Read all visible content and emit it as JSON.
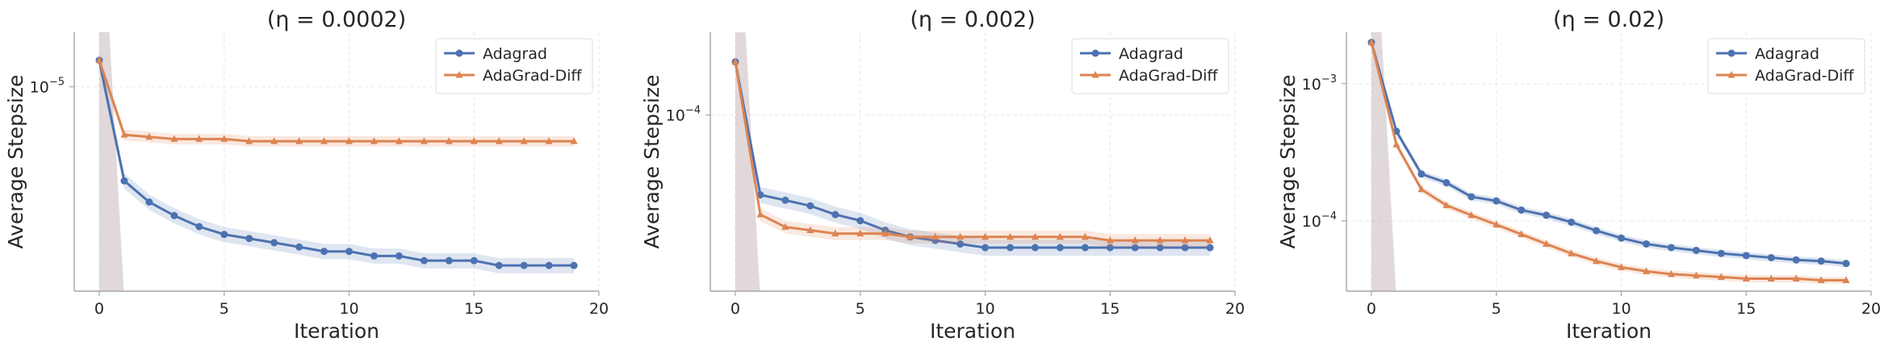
{
  "colors": {
    "adagrad": "#4c72b0",
    "adagrad_diff": "#dd8452",
    "initial_band": "#9b7f86"
  },
  "chart_data": [
    {
      "type": "line",
      "title": "(η = 0.0002)",
      "xlabel": "Iteration",
      "ylabel": "Average Stepsize",
      "xlim": [
        -1,
        20
      ],
      "xticks": [
        0,
        5,
        10,
        15,
        20
      ],
      "ylog": true,
      "ylim": [
        2.62e-06,
        1.43e-05
      ],
      "yticks": [
        {
          "value": 1e-05,
          "label": "10",
          "exp": "−5"
        }
      ],
      "grid": true,
      "legend": "top-right",
      "x": [
        0,
        1,
        2,
        3,
        4,
        5,
        6,
        7,
        8,
        9,
        10,
        11,
        12,
        13,
        14,
        15,
        16,
        17,
        18,
        19
      ],
      "series": [
        {
          "name": "Adagrad",
          "marker": "circle",
          "color": "#4c72b0",
          "values": [
            1.19e-05,
            5.4e-06,
            4.7e-06,
            4.3e-06,
            4e-06,
            3.8e-06,
            3.7e-06,
            3.6e-06,
            3.5e-06,
            3.4e-06,
            3.4e-06,
            3.3e-06,
            3.3e-06,
            3.2e-06,
            3.2e-06,
            3.2e-06,
            3.1e-06,
            3.1e-06,
            3.1e-06,
            3.1e-06
          ],
          "band": 0.05
        },
        {
          "name": "AdaGrad-Diff",
          "marker": "triangle",
          "color": "#dd8452",
          "values": [
            1.19e-05,
            7.3e-06,
            7.2e-06,
            7.1e-06,
            7.1e-06,
            7.1e-06,
            7e-06,
            7e-06,
            7e-06,
            7e-06,
            7e-06,
            7e-06,
            7e-06,
            7e-06,
            7e-06,
            7e-06,
            7e-06,
            7e-06,
            7e-06,
            7e-06
          ],
          "band": 0.035
        }
      ]
    },
    {
      "type": "line",
      "title": "(η = 0.002)",
      "xlabel": "Iteration",
      "ylabel": "Average Stepsize",
      "xlim": [
        -1,
        20
      ],
      "xticks": [
        0,
        5,
        10,
        15,
        20
      ],
      "ylog": true,
      "ylim": [
        3.36e-05,
        0.000167
      ],
      "yticks": [
        {
          "value": 0.0001,
          "label": "10",
          "exp": "−4"
        }
      ],
      "grid": true,
      "legend": "top-right",
      "x": [
        0,
        1,
        2,
        3,
        4,
        5,
        6,
        7,
        8,
        9,
        10,
        11,
        12,
        13,
        14,
        15,
        16,
        17,
        18,
        19
      ],
      "series": [
        {
          "name": "Adagrad",
          "marker": "circle",
          "color": "#4c72b0",
          "values": [
            0.000139,
            6.1e-05,
            5.9e-05,
            5.7e-05,
            5.4e-05,
            5.2e-05,
            4.9e-05,
            4.7e-05,
            4.6e-05,
            4.5e-05,
            4.4e-05,
            4.4e-05,
            4.4e-05,
            4.4e-05,
            4.4e-05,
            4.4e-05,
            4.4e-05,
            4.4e-05,
            4.4e-05,
            4.4e-05
          ],
          "band": 0.05
        },
        {
          "name": "AdaGrad-Diff",
          "marker": "triangle",
          "color": "#dd8452",
          "values": [
            0.000139,
            5.4e-05,
            5e-05,
            4.9e-05,
            4.8e-05,
            4.8e-05,
            4.8e-05,
            4.7e-05,
            4.7e-05,
            4.7e-05,
            4.7e-05,
            4.7e-05,
            4.7e-05,
            4.7e-05,
            4.7e-05,
            4.6e-05,
            4.6e-05,
            4.6e-05,
            4.6e-05,
            4.6e-05
          ],
          "band": 0.04
        }
      ]
    },
    {
      "type": "line",
      "title": "(η = 0.02)",
      "xlabel": "Iteration",
      "ylabel": "Average Stepsize",
      "xlim": [
        -1,
        20
      ],
      "xticks": [
        0,
        5,
        10,
        15,
        20
      ],
      "ylog": true,
      "ylim": [
        3.08e-05,
        0.00237
      ],
      "yticks": [
        {
          "value": 0.001,
          "label": "10",
          "exp": "−3"
        },
        {
          "value": 0.0001,
          "label": "10",
          "exp": "−4"
        }
      ],
      "grid": true,
      "legend": "top-right",
      "x": [
        0,
        1,
        2,
        3,
        4,
        5,
        6,
        7,
        8,
        9,
        10,
        11,
        12,
        13,
        14,
        15,
        16,
        17,
        18,
        19
      ],
      "series": [
        {
          "name": "Adagrad",
          "marker": "circle",
          "color": "#4c72b0",
          "values": [
            0.002,
            0.00045,
            0.00022,
            0.00019,
            0.00015,
            0.00014,
            0.00012,
            0.00011,
            9.8e-05,
            8.5e-05,
            7.5e-05,
            6.8e-05,
            6.4e-05,
            6.1e-05,
            5.8e-05,
            5.6e-05,
            5.4e-05,
            5.2e-05,
            5.1e-05,
            4.9e-05
          ],
          "band": 0.06
        },
        {
          "name": "AdaGrad-Diff",
          "marker": "triangle",
          "color": "#dd8452",
          "values": [
            0.002,
            0.00036,
            0.00017,
            0.00013,
            0.00011,
            9.4e-05,
            8e-05,
            6.8e-05,
            5.8e-05,
            5.1e-05,
            4.6e-05,
            4.3e-05,
            4.1e-05,
            4e-05,
            3.9e-05,
            3.8e-05,
            3.8e-05,
            3.8e-05,
            3.7e-05,
            3.7e-05
          ],
          "band": 0.06
        }
      ]
    }
  ]
}
